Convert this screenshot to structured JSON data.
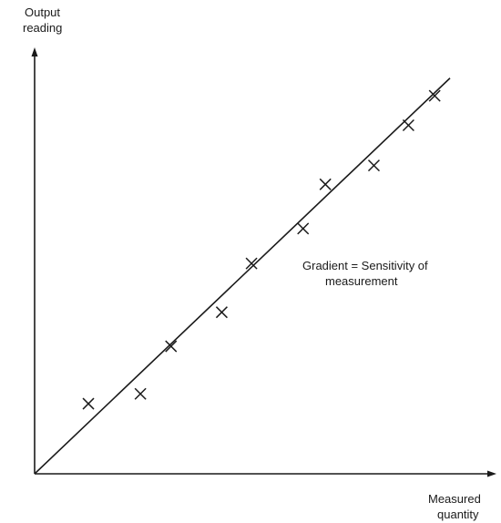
{
  "chart_data": {
    "type": "scatter",
    "ylabel_lines": [
      "Output",
      "reading"
    ],
    "xlabel_lines": [
      "Measured",
      "quantity"
    ],
    "annotation_lines": [
      "Gradient = Sensitivity of",
      "measurement"
    ],
    "xlim": [
      0,
      10
    ],
    "ylim": [
      0,
      10
    ],
    "grid": false,
    "series": [
      {
        "marker": "x",
        "points": [
          {
            "x": 1.23,
            "y": 1.71
          },
          {
            "x": 2.42,
            "y": 1.95
          },
          {
            "x": 3.12,
            "y": 3.11
          },
          {
            "x": 4.28,
            "y": 3.94
          },
          {
            "x": 4.96,
            "y": 5.13
          },
          {
            "x": 6.14,
            "y": 5.98
          },
          {
            "x": 6.65,
            "y": 7.06
          },
          {
            "x": 7.76,
            "y": 7.52
          },
          {
            "x": 8.55,
            "y": 8.5
          },
          {
            "x": 9.15,
            "y": 9.22
          }
        ]
      }
    ],
    "fit_line": {
      "x": [
        0,
        9.5
      ],
      "y": [
        0,
        9.65
      ]
    }
  }
}
